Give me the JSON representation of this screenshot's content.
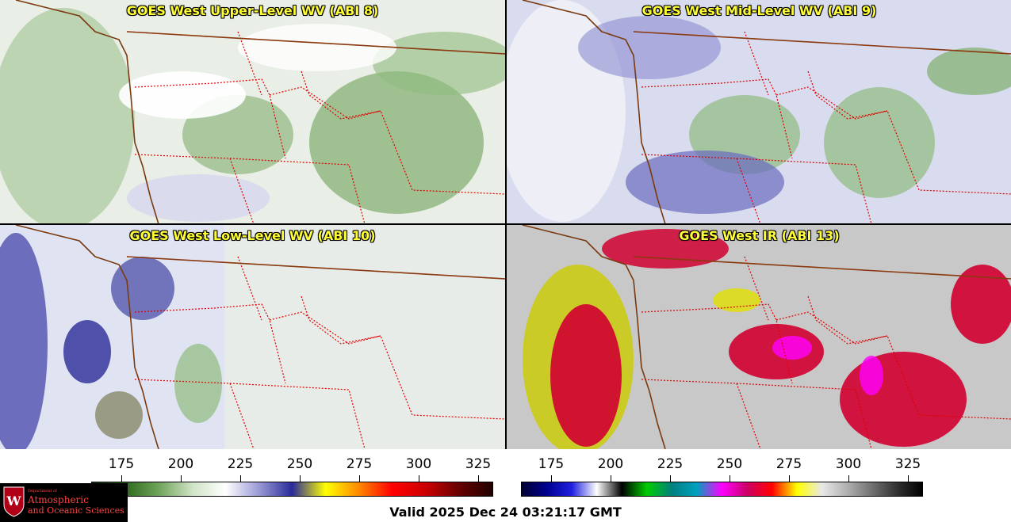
{
  "panels": [
    {
      "title": "GOES West Upper-Level WV (ABI 8)",
      "scheme": "upper"
    },
    {
      "title": "GOES West Mid-Level WV (ABI 9)",
      "scheme": "mid"
    },
    {
      "title": "GOES West Low-Level WV (ABI 10)",
      "scheme": "low"
    },
    {
      "title": "GOES West IR (ABI 13)",
      "scheme": "ir"
    }
  ],
  "colorbars": [
    {
      "name": "wv",
      "ticks": [
        "175",
        "200",
        "225",
        "250",
        "275",
        "300",
        "325"
      ],
      "colors": [
        "#0f3a0f",
        "#2f6b1f",
        "#6fa35a",
        "#cfe3c5",
        "#ffffff",
        "#9a9ad6",
        "#2a2a9a",
        "#ffff00",
        "#ff8800",
        "#ff0000",
        "#cc0000",
        "#660000",
        "#220000"
      ]
    },
    {
      "name": "ir",
      "ticks": [
        "175",
        "200",
        "225",
        "250",
        "275",
        "300",
        "325"
      ],
      "colors": [
        "#000030",
        "#000090",
        "#2020e0",
        "#ffffff",
        "#000000",
        "#00cc00",
        "#008080",
        "#00a0c0",
        "#ff00ff",
        "#cc0066",
        "#ff0000",
        "#ffff00",
        "#e8e8e8",
        "#b0b0b0",
        "#707070",
        "#303030",
        "#000000"
      ]
    }
  ],
  "logo": {
    "line1": "Department of",
    "line2": "Atmospheric",
    "line3": "and Oceanic Sciences"
  },
  "valid_time": "Valid 2025 Dec 24 03:21:17 GMT"
}
